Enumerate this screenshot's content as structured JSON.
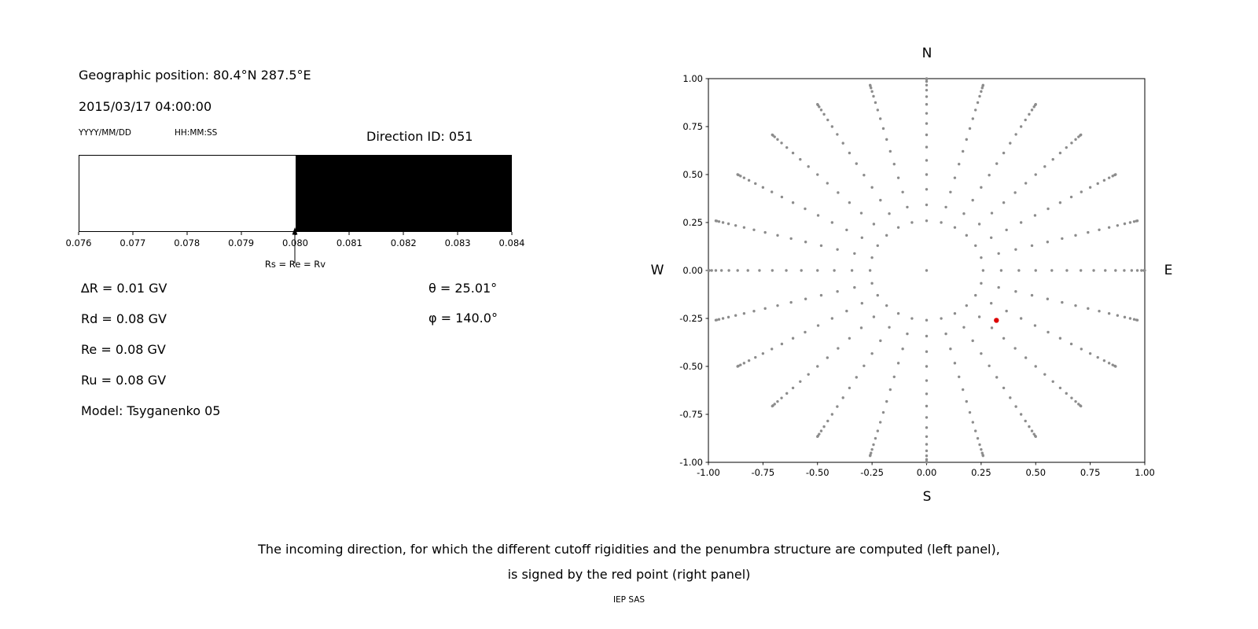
{
  "left_panel": {
    "geo_position": "Geographic position: 80.4°N 287.5°E",
    "datetime": "2015/03/17 04:00:00",
    "date_format_label": "YYYY/MM/DD",
    "time_format_label": "HH:MM:SS",
    "direction_id": "Direction ID: 051",
    "params_left": [
      "∆R = 0.01 GV",
      "Rd = 0.08 GV",
      "Re = 0.08 GV",
      "Ru = 0.08 GV",
      "Model: Tsyganenko 05"
    ],
    "params_right": [
      "θ = 25.01°",
      "φ = 140.0°"
    ]
  },
  "caption": {
    "line1": "The incoming direction, for which the different cutoff rigidities and the penumbra structure are computed (left panel),",
    "line2": "is signed by the red point (right panel)",
    "credit": "IEP SAS"
  },
  "chart_data": [
    {
      "type": "bar",
      "title": "",
      "xlabel": "",
      "xlim": [
        0.076,
        0.084
      ],
      "x_tick_labels": [
        "0.076",
        "0.077",
        "0.078",
        "0.079",
        "0.080",
        "0.081",
        "0.082",
        "0.083",
        "0.084"
      ],
      "regions": [
        {
          "from": 0.076,
          "to": 0.08,
          "color": "#ffffff"
        },
        {
          "from": 0.08,
          "to": 0.084,
          "color": "#000000"
        }
      ],
      "annotation": {
        "x": 0.08,
        "label": "Rs = Re = Rv"
      }
    },
    {
      "type": "scatter",
      "xlim": [
        -1,
        1
      ],
      "ylim": [
        -1,
        1
      ],
      "x_tick_labels": [
        "-1.00",
        "-0.75",
        "-0.50",
        "-0.25",
        "0.00",
        "0.25",
        "0.50",
        "0.75",
        "1.00"
      ],
      "y_tick_labels": [
        "1.00",
        "0.75",
        "0.50",
        "0.25",
        "0.00",
        "-0.25",
        "-0.50",
        "-0.75",
        "-1.00"
      ],
      "compass": {
        "top": "N",
        "bottom": "S",
        "left": "W",
        "right": "E"
      },
      "grid": false,
      "point_color": "#8c8c8c",
      "spokes": {
        "azimuths_deg": [
          0,
          15,
          30,
          45,
          60,
          75,
          90,
          105,
          120,
          135,
          150,
          165,
          180,
          195,
          210,
          225,
          240,
          255,
          270,
          285,
          300,
          315,
          330,
          345
        ],
        "radii": [
          0.259,
          0.342,
          0.423,
          0.5,
          0.574,
          0.643,
          0.707,
          0.766,
          0.819,
          0.866,
          0.906,
          0.94,
          0.966,
          0.985,
          0.996,
          1.0
        ]
      },
      "center_point": {
        "x": 0,
        "y": 0
      },
      "red_point": {
        "x": 0.32,
        "y": -0.26,
        "color": "#dd0000"
      }
    }
  ]
}
